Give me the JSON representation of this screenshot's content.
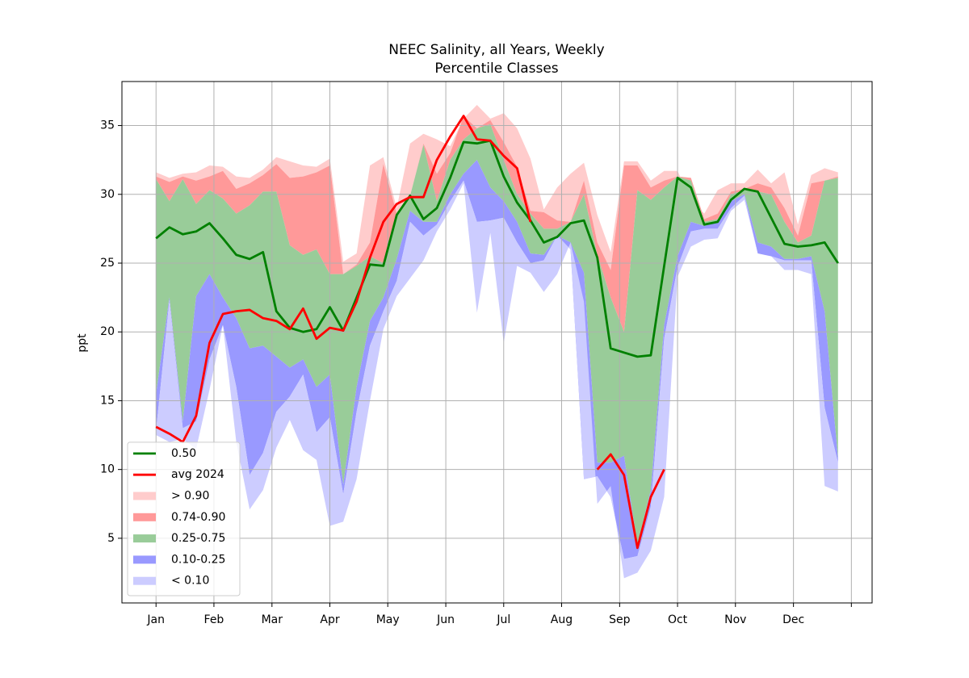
{
  "chart_data": {
    "type": "percentile_bands",
    "title": "NEEC Salinity, all Years, Weekly",
    "subtitle": "Percentile Classes",
    "y_label": "ppt",
    "x": [
      0,
      1,
      2,
      3,
      4,
      5,
      6,
      7,
      8,
      9,
      10,
      11,
      12,
      13,
      14,
      15,
      16,
      17,
      18,
      19,
      20,
      21,
      22,
      23,
      24,
      25,
      26,
      27,
      28,
      29,
      30,
      31,
      32,
      33,
      34,
      35,
      36,
      37,
      38,
      39,
      40,
      41,
      42,
      43,
      44,
      45,
      46,
      47,
      48,
      49,
      50,
      51
    ],
    "xlim": [
      -2.55,
      53.55
    ],
    "xticks": [
      {
        "value": 0,
        "label": "Jan"
      },
      {
        "value": 4.33,
        "label": "Feb"
      },
      {
        "value": 8.67,
        "label": "Mar"
      },
      {
        "value": 13,
        "label": "Apr"
      },
      {
        "value": 17.33,
        "label": "May"
      },
      {
        "value": 21.67,
        "label": "Jun"
      },
      {
        "value": 26,
        "label": "Jul"
      },
      {
        "value": 30.33,
        "label": "Aug"
      },
      {
        "value": 34.67,
        "label": "Sep"
      },
      {
        "value": 39,
        "label": "Oct"
      },
      {
        "value": 43.33,
        "label": "Nov"
      },
      {
        "value": 47.67,
        "label": "Dec"
      },
      {
        "value": 52,
        "label": null
      }
    ],
    "ylim": [
      0.3,
      38.2
    ],
    "yticks": [
      5,
      10,
      15,
      20,
      25,
      30,
      35
    ],
    "grid": true,
    "legend": "lower left",
    "series": [
      {
        "name": "0.50",
        "color": "#008000",
        "values": [
          26.8,
          27.6,
          27.1,
          27.3,
          27.9,
          26.8,
          25.6,
          25.3,
          25.8,
          21.5,
          20.3,
          20.0,
          20.2,
          21.8,
          20.1,
          22.5,
          24.9,
          24.8,
          28.5,
          29.9,
          28.2,
          29.0,
          31.2,
          33.8,
          33.7,
          33.9,
          31.3,
          29.4,
          28.1,
          26.5,
          26.9,
          27.9,
          28.1,
          25.4,
          18.8,
          18.5,
          18.2,
          18.3,
          24.8,
          31.2,
          30.5,
          27.8,
          28.0,
          29.6,
          30.4,
          30.2,
          28.3,
          26.4,
          26.2,
          26.3,
          26.5,
          25.0
        ]
      },
      {
        "name": "avg 2024",
        "color": "#ff0000",
        "values": [
          13.1,
          12.6,
          12.0,
          13.9,
          19.2,
          21.3,
          21.5,
          21.6,
          21.0,
          20.8,
          20.2,
          21.7,
          19.5,
          20.3,
          20.1,
          22.2,
          25.4,
          28.0,
          29.3,
          29.8,
          29.8,
          32.5,
          34.2,
          35.7,
          34.0,
          33.9,
          32.8,
          31.9,
          28.0,
          null,
          null,
          null,
          null,
          10.0,
          11.1,
          9.6,
          4.3,
          8.0,
          10.0,
          null,
          null,
          null,
          null,
          null,
          null,
          null,
          null,
          null,
          null,
          null,
          null,
          null
        ]
      }
    ],
    "bounds": [
      [
        12.5,
        12.0,
        12.2,
        11.5,
        15.8,
        20.5,
        12.0,
        7.1,
        8.5,
        11.6,
        13.6,
        11.4,
        10.7,
        5.9,
        6.2,
        9.3,
        15.0,
        20.2,
        22.6,
        23.9,
        25.2,
        27.3,
        28.9,
        30.8,
        21.4,
        27.2,
        19.2,
        24.8,
        24.3,
        22.9,
        24.2,
        26.5,
        22.2,
        7.5,
        8.8,
        2.1,
        2.5,
        4.1,
        8.0,
        24.0,
        26.2,
        26.7,
        26.8,
        28.8,
        29.6,
        25.7,
        25.5,
        24.5,
        24.5,
        24.2,
        8.8,
        8.4
      ],
      [
        12.8,
        22.3,
        13.0,
        13.5,
        18.0,
        20.5,
        16.0,
        9.6,
        11.2,
        14.2,
        15.3,
        16.9,
        12.7,
        13.8,
        8.2,
        14.2,
        19.0,
        21.5,
        23.7,
        28.0,
        27.0,
        27.8,
        29.5,
        31.0,
        28.0,
        28.1,
        28.3,
        26.5,
        25.0,
        25.2,
        27.0,
        26.0,
        9.3,
        9.5,
        8.0,
        3.5,
        3.7,
        7.3,
        19.5,
        24.7,
        27.3,
        27.5,
        27.5,
        29.0,
        29.9,
        25.7,
        25.5,
        25.2,
        25.2,
        25.2,
        14.5,
        10.5
      ],
      [
        15.5,
        22.5,
        13.5,
        22.6,
        24.2,
        22.5,
        21.0,
        18.8,
        19.0,
        18.2,
        17.4,
        18.0,
        16.0,
        16.9,
        8.9,
        16.0,
        20.8,
        22.5,
        25.3,
        28.8,
        28.0,
        28.0,
        30.0,
        31.5,
        32.5,
        30.5,
        29.5,
        28.0,
        25.7,
        25.6,
        27.0,
        26.5,
        24.3,
        10.5,
        10.5,
        11.0,
        4.5,
        8.5,
        20.5,
        25.5,
        28.0,
        27.7,
        28.0,
        29.5,
        30.0,
        26.5,
        26.2,
        25.3,
        25.3,
        25.5,
        21.5,
        10.8
      ],
      [
        31.1,
        29.5,
        31.1,
        29.3,
        30.3,
        29.7,
        28.6,
        29.2,
        30.2,
        30.2,
        26.3,
        25.6,
        26.0,
        24.2,
        24.2,
        24.8,
        25.5,
        25.0,
        28.6,
        29.9,
        33.6,
        29.5,
        32.5,
        34.0,
        34.8,
        35.1,
        32.5,
        30.0,
        28.6,
        27.5,
        27.5,
        28.0,
        30.0,
        25.6,
        22.5,
        20.0,
        30.3,
        29.6,
        30.5,
        31.3,
        31.0,
        28.0,
        28.2,
        30.0,
        30.3,
        30.2,
        30.0,
        28.0,
        26.5,
        27.0,
        31.0,
        31.2
      ],
      [
        31.3,
        30.9,
        31.3,
        31.0,
        31.3,
        31.7,
        30.4,
        30.8,
        31.4,
        32.2,
        31.2,
        31.3,
        31.6,
        32.1,
        24.2,
        24.9,
        26.5,
        32.2,
        28.6,
        29.9,
        33.7,
        31.5,
        33.0,
        35.7,
        34.8,
        35.4,
        33.8,
        32.0,
        28.8,
        28.7,
        28.1,
        28.0,
        31.0,
        26.5,
        24.5,
        32.1,
        32.1,
        30.5,
        31.0,
        31.3,
        31.2,
        28.2,
        28.6,
        30.2,
        30.4,
        30.8,
        30.5,
        29.0,
        27.0,
        30.8,
        31.0,
        31.3
      ],
      [
        31.6,
        31.2,
        31.5,
        31.6,
        32.1,
        32.0,
        31.3,
        31.2,
        31.8,
        32.7,
        32.4,
        32.1,
        32.0,
        32.6,
        25.1,
        25.7,
        32.1,
        32.7,
        29.0,
        33.7,
        34.4,
        34.0,
        33.5,
        35.5,
        36.5,
        35.5,
        35.9,
        34.8,
        32.6,
        28.9,
        30.5,
        31.5,
        32.3,
        28.5,
        25.8,
        32.4,
        32.4,
        31.0,
        31.7,
        31.7,
        29.6,
        28.6,
        30.3,
        30.8,
        30.8,
        31.8,
        30.8,
        31.6,
        27.8,
        31.4,
        31.9,
        31.6
      ]
    ],
    "bands": [
      {
        "name": "> 0.90",
        "color": "#ffcccc"
      },
      {
        "name": "0.74-0.90",
        "color": "#ff9999"
      },
      {
        "name": "0.25-0.75",
        "color": "#99cc99"
      },
      {
        "name": "0.10-0.25",
        "color": "#9999ff"
      },
      {
        "name": "< 0.10",
        "color": "#ccccff"
      }
    ]
  }
}
